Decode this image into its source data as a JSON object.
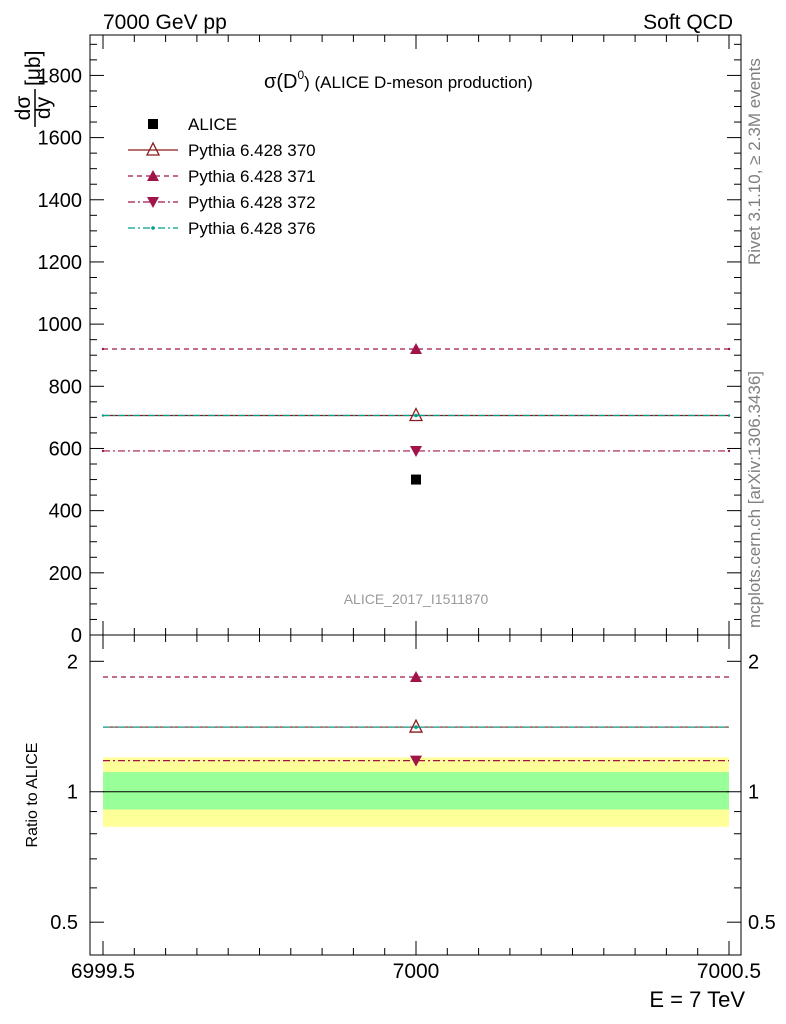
{
  "header": {
    "left": "7000 GeV pp",
    "right": "Soft QCD"
  },
  "side_labels": {
    "rivet": "Rivet 3.1.10, ≥ 2.3M events",
    "mcplots": "mcplots.cern.ch [arXiv:1306.3436]"
  },
  "chart_data": {
    "type": "scatter",
    "title": "σ(D⁰) (ALICE D-meson production)",
    "title_parts": {
      "pre": "σ(D",
      "sup": "0",
      "post": ") (ALICE D-meson production)"
    },
    "watermark": "ALICE_2017_I1511870",
    "ylabel_main": "dσ/dy [μb]",
    "ylabel_main_parts": {
      "num": "dσ",
      "den": "dy",
      "unit": "[μb]"
    },
    "ylabel_ratio": "Ratio to ALICE",
    "xlabel": "E = 7 TeV",
    "xlim": [
      6999.5,
      7000.5
    ],
    "ylim_main": [
      0,
      1930
    ],
    "ylim_ratio": [
      0.42,
      2.3
    ],
    "x_ticks": [
      "6999.5",
      "7000",
      "7000.5"
    ],
    "y_ticks_main": [
      "0",
      "200",
      "400",
      "600",
      "800",
      "1000",
      "1200",
      "1400",
      "1600",
      "1800"
    ],
    "y_ticks_ratio": [
      "0.5",
      "1",
      "2"
    ],
    "legend_position": "top-left",
    "series": [
      {
        "name": "ALICE",
        "x": 7000,
        "y": 500,
        "ratio": 1.0,
        "marker": "square-filled",
        "line": "none",
        "color": "#000000"
      },
      {
        "name": "Pythia 6.428 370",
        "x": 7000,
        "y": 706,
        "ratio": 1.41,
        "marker": "triangle-up-open",
        "line": "solid",
        "color": "#8b1a1a"
      },
      {
        "name": "Pythia 6.428 371",
        "x": 7000,
        "y": 920,
        "ratio": 1.84,
        "marker": "triangle-up-filled",
        "line": "dashed",
        "color": "#a0144a"
      },
      {
        "name": "Pythia 6.428 372",
        "x": 7000,
        "y": 592,
        "ratio": 1.18,
        "marker": "triangle-down-filled",
        "line": "dashdot",
        "color": "#a0144a"
      },
      {
        "name": "Pythia 6.428 376",
        "x": 7000,
        "y": 706,
        "ratio": 1.41,
        "marker": "dot",
        "line": "dashdot",
        "color": "#00a08a"
      }
    ],
    "ratio_bands": [
      {
        "name": "stat",
        "low": 0.91,
        "high": 1.11,
        "color": "#99ff99"
      },
      {
        "name": "total",
        "low": 0.83,
        "high": 1.2,
        "color": "#ffff99"
      }
    ]
  }
}
